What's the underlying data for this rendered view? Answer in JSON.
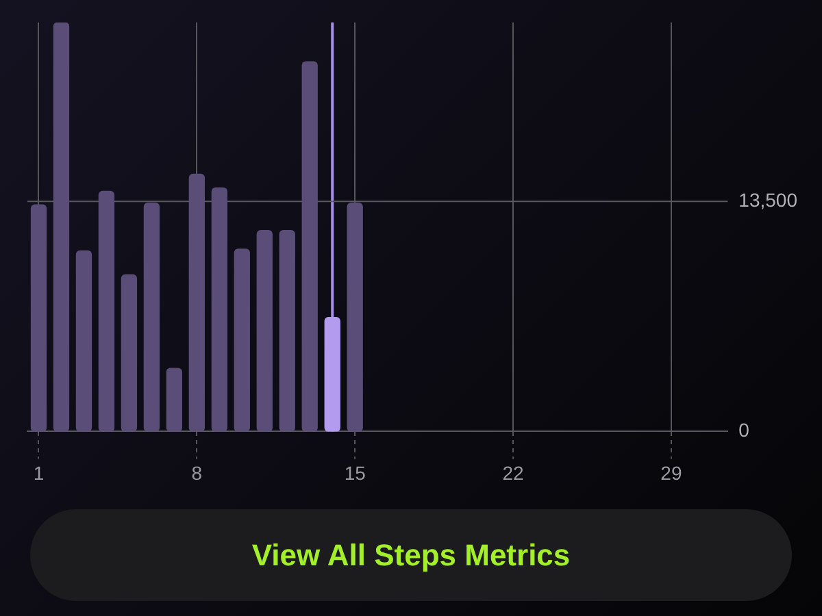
{
  "chart_data": {
    "type": "bar",
    "x": [
      1,
      2,
      3,
      4,
      5,
      6,
      7,
      8,
      9,
      10,
      11,
      12,
      13,
      14,
      15
    ],
    "values": [
      13300,
      24000,
      10600,
      14100,
      9200,
      13400,
      3700,
      15100,
      14300,
      10700,
      11800,
      11800,
      21700,
      6700,
      13400
    ],
    "colors": [
      "#5a4e78",
      "#5a4e78",
      "#5a4e78",
      "#5a4e78",
      "#5a4e78",
      "#5a4e78",
      "#5a4e78",
      "#5a4e78",
      "#5a4e78",
      "#5a4e78",
      "#5a4e78",
      "#5a4e78",
      "#5a4e78",
      "#b39cf0",
      "#5a4e78"
    ],
    "xlim": [
      0.5,
      31.5
    ],
    "xticks": [
      1,
      8,
      15,
      22,
      29
    ],
    "ylim": [
      0,
      24000
    ],
    "yticks": [
      0,
      {
        "value": 13500,
        "label": "13,500"
      }
    ],
    "grid": "x",
    "ref_lines": [
      {
        "axis": "x",
        "value": 14,
        "color": "#a48ee6"
      },
      {
        "axis": "y",
        "value": 13500,
        "color": "#5a5a60"
      }
    ],
    "annotations": [
      "View All Steps Metrics"
    ]
  }
}
